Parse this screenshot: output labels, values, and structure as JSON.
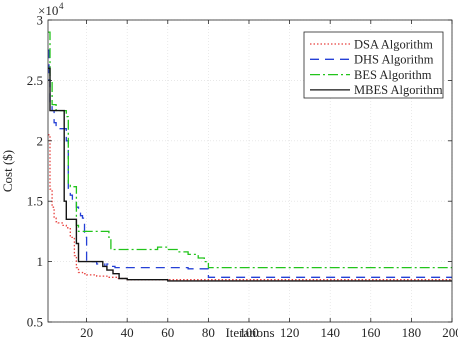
{
  "chart_data": {
    "type": "line",
    "title": "",
    "xlabel": "Iterations",
    "ylabel": "Cost ($)",
    "y_multiplier_label": "×10",
    "y_multiplier_exponent": "4",
    "xlim": [
      1,
      200
    ],
    "ylim": [
      0.5,
      3
    ],
    "x_ticks": [
      20,
      40,
      60,
      80,
      100,
      120,
      140,
      160,
      180,
      200
    ],
    "x_tick_labels": [
      "20",
      "40",
      "60",
      "80",
      "100",
      "120",
      "140",
      "160",
      "180",
      "200"
    ],
    "y_ticks": [
      0.5,
      1,
      1.5,
      2,
      2.5,
      3
    ],
    "y_tick_labels": [
      "0.5",
      "1",
      "1.5",
      "2",
      "2.5",
      "3"
    ],
    "grid": true,
    "legend_position": "top-right",
    "series": [
      {
        "name": "DSA Algorithm",
        "color": "#e8423f",
        "dash": "1.5,2",
        "x": [
          1,
          2,
          3,
          4,
          5,
          6,
          8,
          10,
          12,
          14,
          15,
          16,
          18,
          20,
          25,
          30,
          35,
          40,
          50,
          60,
          80,
          100,
          200
        ],
        "y": [
          2.05,
          1.6,
          1.45,
          1.36,
          1.33,
          1.32,
          1.3,
          1.28,
          1.2,
          1.05,
          0.95,
          0.91,
          0.9,
          0.89,
          0.88,
          0.87,
          0.86,
          0.85,
          0.85,
          0.85,
          0.85,
          0.85,
          0.85
        ]
      },
      {
        "name": "DHS  Algorithm",
        "color": "#2540d6",
        "dash": "9,6",
        "x": [
          1,
          1.5,
          2,
          3,
          4,
          5,
          8,
          10,
          11,
          12,
          13,
          15,
          16,
          17,
          18,
          19,
          20,
          22,
          25,
          27,
          29,
          30,
          32,
          34,
          37,
          40,
          70,
          80,
          200
        ],
        "y": [
          2.75,
          2.5,
          2.3,
          2.25,
          2.15,
          2.1,
          2.1,
          2.0,
          1.6,
          1.55,
          1.5,
          1.45,
          1.4,
          1.38,
          1.36,
          1.2,
          1.0,
          1.0,
          0.98,
          0.98,
          0.96,
          0.98,
          0.96,
          0.95,
          0.95,
          0.95,
          0.94,
          0.87,
          0.87
        ]
      },
      {
        "name": "BES Algorithm",
        "color": "#22c41b",
        "dash": "10,3,2,3",
        "x": [
          1,
          2,
          3,
          5,
          10,
          11,
          12,
          14,
          15,
          16,
          20,
          25,
          30,
          31,
          32,
          50,
          55,
          60,
          65,
          70,
          75,
          78,
          80,
          100,
          200
        ],
        "y": [
          2.9,
          2.5,
          2.3,
          2.25,
          2.2,
          1.65,
          1.62,
          1.62,
          1.3,
          1.25,
          1.25,
          1.25,
          1.25,
          1.2,
          1.1,
          1.1,
          1.12,
          1.1,
          1.08,
          1.06,
          1.03,
          1.0,
          0.95,
          0.95,
          0.93
        ]
      },
      {
        "name": "MBES Algorithm",
        "color": "#141414",
        "dash": "",
        "x": [
          1,
          2,
          3,
          8,
          9,
          10,
          12,
          15,
          16,
          17,
          18,
          20,
          22,
          25,
          27,
          28,
          30,
          33,
          36,
          40,
          60,
          200
        ],
        "y": [
          2.6,
          2.25,
          2.25,
          2.25,
          1.5,
          1.35,
          1.35,
          1.15,
          1.0,
          1.0,
          1.0,
          1.0,
          1.0,
          1.0,
          1.0,
          0.96,
          0.93,
          0.9,
          0.86,
          0.85,
          0.84,
          0.84
        ]
      }
    ]
  }
}
